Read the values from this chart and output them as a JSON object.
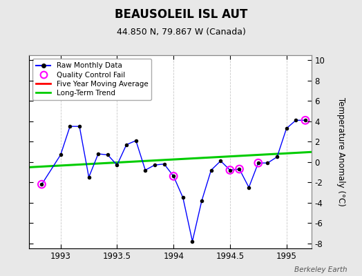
{
  "title": "BEAUSOLEIL ISL AUT",
  "subtitle": "44.850 N, 79.867 W (Canada)",
  "ylabel_right": "Temperature Anomaly (°C)",
  "background_color": "#e8e8e8",
  "plot_bg_color": "#ffffff",
  "ylim": [
    -8.5,
    10.5
  ],
  "xlim": [
    1992.72,
    1995.22
  ],
  "xticks": [
    1993,
    1993.5,
    1994,
    1994.5,
    1995
  ],
  "yticks": [
    -8,
    -6,
    -4,
    -2,
    0,
    2,
    4,
    6,
    8,
    10
  ],
  "raw_x": [
    1992.833,
    1993.0,
    1993.083,
    1993.167,
    1993.25,
    1993.333,
    1993.417,
    1993.5,
    1993.583,
    1993.667,
    1993.75,
    1993.833,
    1993.917,
    1994.0,
    1994.083,
    1994.167,
    1994.25,
    1994.333,
    1994.417,
    1994.5,
    1994.583,
    1994.667,
    1994.75,
    1994.833,
    1994.917,
    1995.0,
    1995.083,
    1995.167
  ],
  "raw_y": [
    -2.2,
    0.7,
    3.5,
    3.5,
    -1.5,
    0.8,
    0.7,
    -0.3,
    1.7,
    2.1,
    -0.8,
    -0.3,
    -0.2,
    -1.4,
    -3.5,
    -7.8,
    -3.8,
    -0.8,
    0.1,
    -0.8,
    -0.7,
    -2.5,
    -0.1,
    -0.1,
    0.5,
    3.3,
    4.1,
    4.1
  ],
  "qc_fail_x": [
    1992.833,
    1994.0,
    1994.5,
    1994.583,
    1994.75,
    1995.167
  ],
  "qc_fail_y": [
    -2.2,
    -1.4,
    -0.8,
    -0.7,
    -0.1,
    4.1
  ],
  "trend_x": [
    1992.72,
    1995.22
  ],
  "trend_y": [
    -0.52,
    0.98
  ],
  "raw_line_color": "#0000ff",
  "raw_marker_color": "#000000",
  "qc_circle_color": "#ff00ff",
  "trend_color": "#00cc00",
  "moving_avg_color": "#ff0000",
  "grid_color": "#c8c8c8",
  "watermark": "Berkeley Earth",
  "legend_loc": "upper left"
}
